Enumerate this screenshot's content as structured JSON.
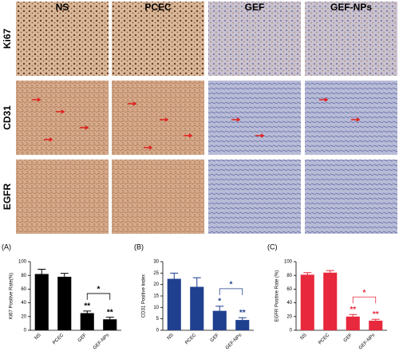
{
  "image_panel": {
    "columns": [
      "NS",
      "PCEC",
      "GEF",
      "GEF-NPs"
    ],
    "rows": [
      "Ki67",
      "CD31",
      "EGFR"
    ]
  },
  "chart_data": [
    {
      "type": "bar",
      "panel": "(A)",
      "ylabel": "Ki67 Positive Rate(%)",
      "categories": [
        "NS",
        "PCEC",
        "GEF",
        "GEF-NPs"
      ],
      "values": [
        82,
        78,
        25,
        16
      ],
      "errors": [
        7,
        5,
        3,
        3
      ],
      "bar_labels": [
        null,
        null,
        "**",
        "**"
      ],
      "bracket_label": "*",
      "color": "#000000",
      "annotation_color": "#000000",
      "ylim": [
        0,
        100
      ],
      "yticks": [
        0,
        20,
        40,
        60,
        80,
        100
      ]
    },
    {
      "type": "bar",
      "panel": "(B)",
      "ylabel": "CD31 Positive Index",
      "categories": [
        "NS",
        "PCEC",
        "GEF",
        "GEF-NPs"
      ],
      "values": [
        22.5,
        19,
        8.5,
        4.5
      ],
      "errors": [
        2.5,
        4,
        2,
        1
      ],
      "bar_labels": [
        null,
        null,
        "*",
        "**"
      ],
      "bracket_label": "*",
      "color": "#1f3f8f",
      "annotation_color": "#1f3f8f",
      "ylim": [
        0,
        30
      ],
      "yticks": [
        0,
        5,
        10,
        15,
        20,
        25,
        30
      ]
    },
    {
      "type": "bar",
      "panel": "(C)",
      "ylabel": "EGFR Positive Rate (%)",
      "categories": [
        "NS",
        "PCEC",
        "GEF",
        "GEF-NPs"
      ],
      "values": [
        81,
        84,
        20,
        14
      ],
      "errors": [
        3,
        3,
        3,
        2
      ],
      "bar_labels": [
        null,
        null,
        "**",
        "**"
      ],
      "bracket_label": "*",
      "color": "#e8283c",
      "annotation_color": "#e8283c",
      "ylim": [
        0,
        100
      ],
      "yticks": [
        0,
        20,
        40,
        60,
        80,
        100
      ]
    }
  ]
}
